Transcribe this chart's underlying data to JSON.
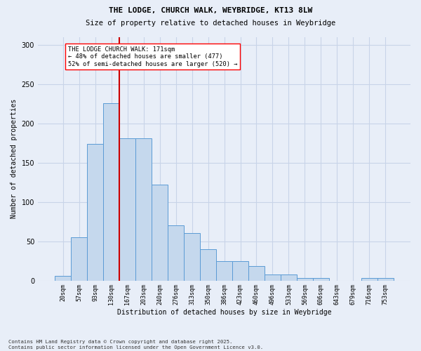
{
  "title1": "THE LODGE, CHURCH WALK, WEYBRIDGE, KT13 8LW",
  "title2": "Size of property relative to detached houses in Weybridge",
  "xlabel": "Distribution of detached houses by size in Weybridge",
  "ylabel": "Number of detached properties",
  "categories": [
    "20sqm",
    "57sqm",
    "93sqm",
    "130sqm",
    "167sqm",
    "203sqm",
    "240sqm",
    "276sqm",
    "313sqm",
    "350sqm",
    "386sqm",
    "423sqm",
    "460sqm",
    "496sqm",
    "533sqm",
    "569sqm",
    "606sqm",
    "643sqm",
    "679sqm",
    "716sqm",
    "753sqm"
  ],
  "bar_heights": [
    6,
    55,
    174,
    226,
    181,
    181,
    122,
    70,
    60,
    40,
    25,
    25,
    18,
    8,
    8,
    3,
    3,
    0,
    0,
    3,
    3
  ],
  "bar_color": "#c5d8ed",
  "bar_edge_color": "#5b9bd5",
  "vline_color": "#cc0000",
  "vline_x": 3.5,
  "annotation_text": "THE LODGE CHURCH WALK: 171sqm\n← 48% of detached houses are smaller (477)\n52% of semi-detached houses are larger (520) →",
  "ylim_max": 310,
  "yticks": [
    0,
    50,
    100,
    150,
    200,
    250,
    300
  ],
  "grid_color": "#c8d4e8",
  "bg_color": "#e8eef8",
  "footer": "Contains HM Land Registry data © Crown copyright and database right 2025.\nContains public sector information licensed under the Open Government Licence v3.0."
}
